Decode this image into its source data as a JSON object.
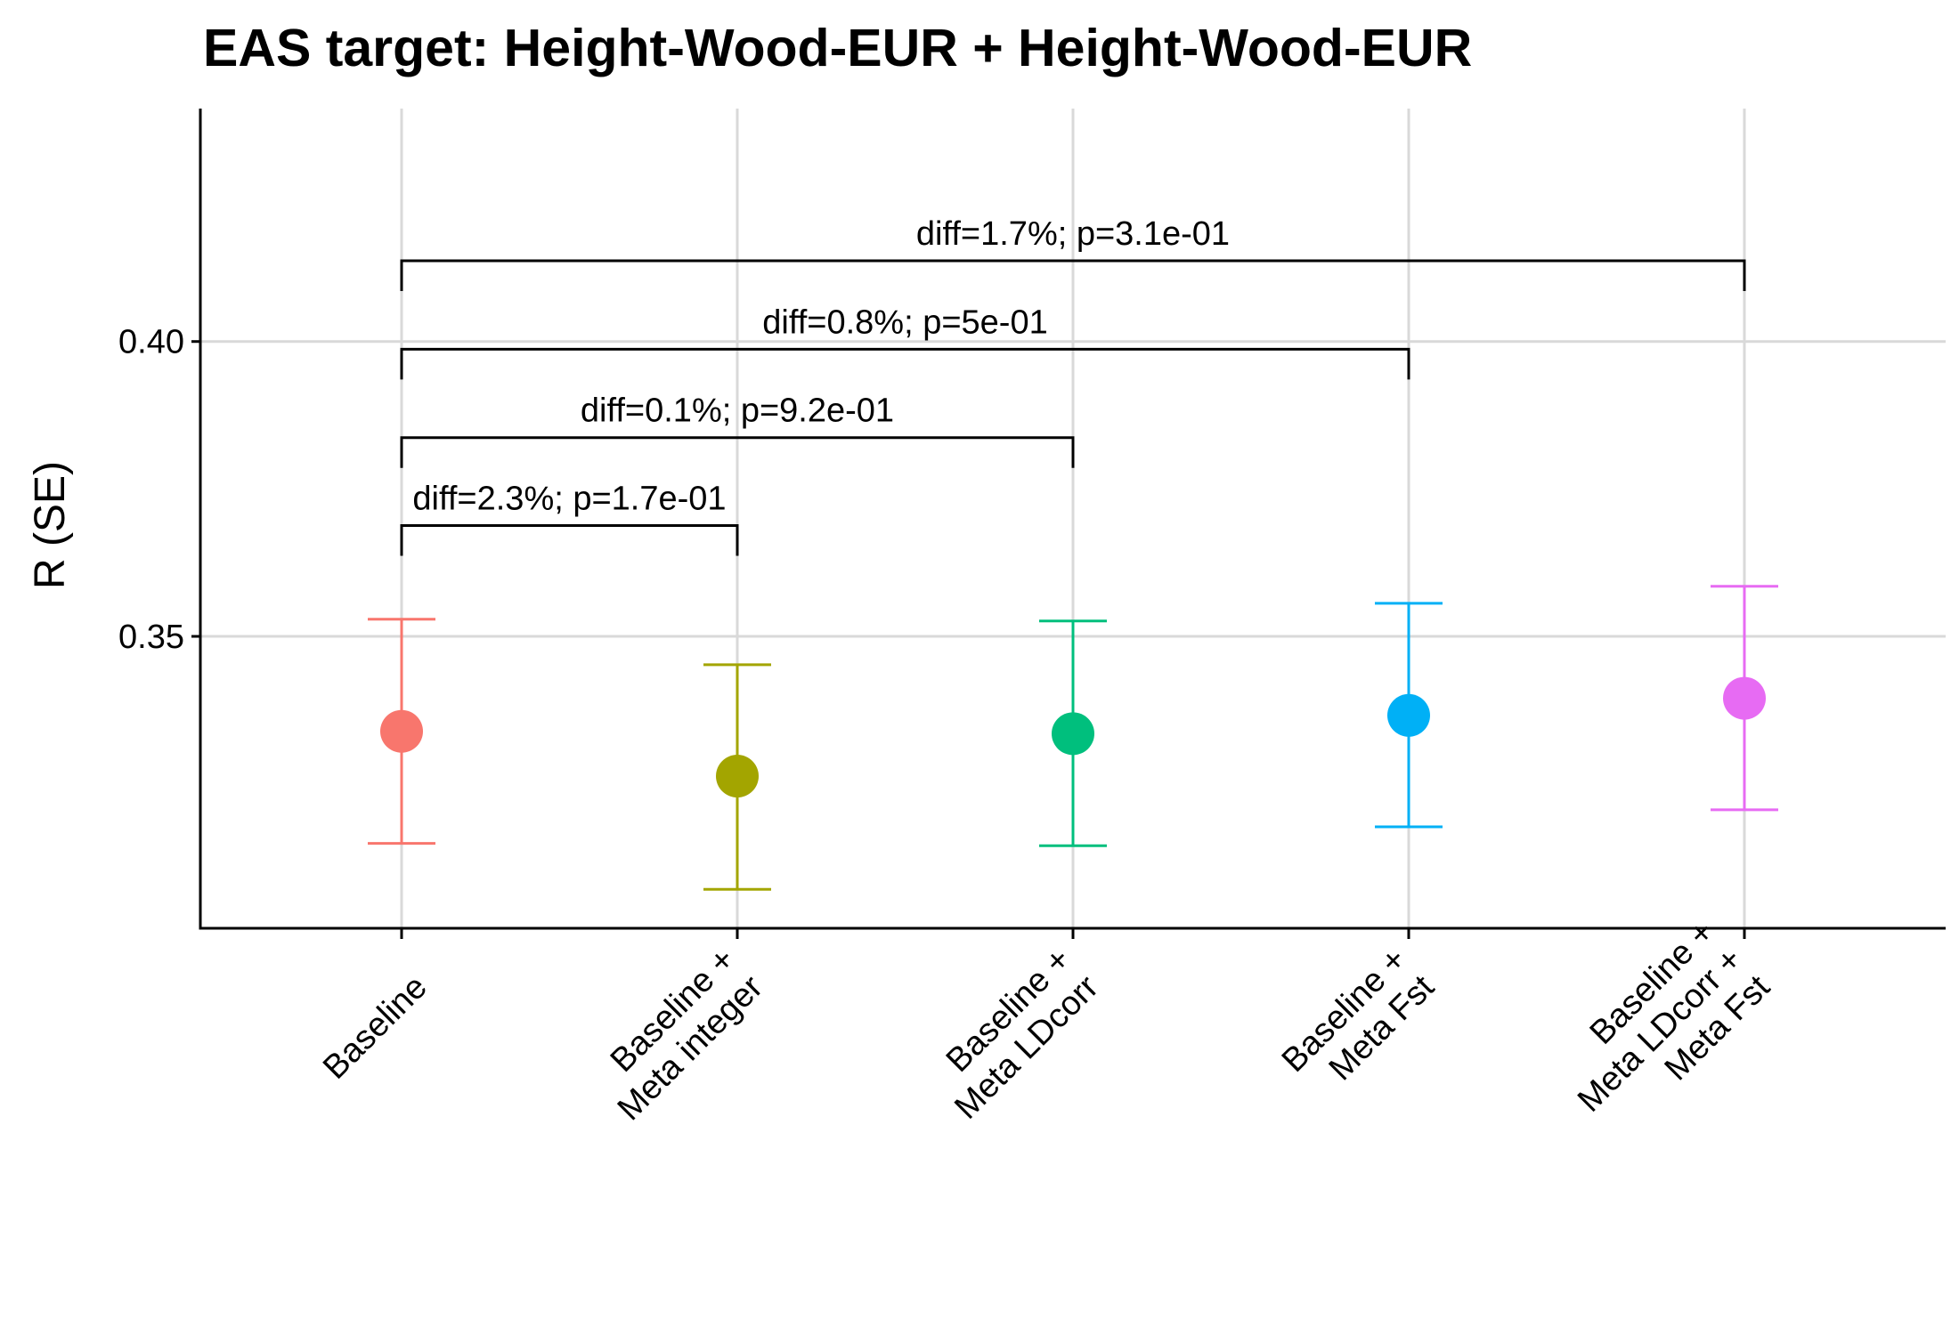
{
  "chart_data": {
    "type": "scatter",
    "title": "EAS target: Height-Wood-EUR + Height-Wood-EUR",
    "xlabel": "",
    "ylabel": "R (SE)",
    "ylim": [
      0.3005,
      0.4395
    ],
    "yticks": [
      0.35,
      0.4
    ],
    "ytick_labels": [
      "0.35",
      "0.40"
    ],
    "grid": true,
    "legend": "none",
    "categories": [
      [
        "Baseline"
      ],
      [
        "Baseline +",
        "Meta integer"
      ],
      [
        "Baseline +",
        "Meta LDcorr"
      ],
      [
        "Baseline +",
        "Meta Fst"
      ],
      [
        "Baseline +",
        "Meta LDcorr +",
        "Meta Fst"
      ]
    ],
    "points": [
      {
        "value": 0.3339,
        "lower": 0.3149,
        "upper": 0.3529,
        "color": "#F8766D"
      },
      {
        "value": 0.3263,
        "lower": 0.3071,
        "upper": 0.3452,
        "color": "#A3A500"
      },
      {
        "value": 0.3335,
        "lower": 0.3145,
        "upper": 0.3526,
        "color": "#00BF7D"
      },
      {
        "value": 0.3366,
        "lower": 0.3177,
        "upper": 0.3556,
        "color": "#00B0F6"
      },
      {
        "value": 0.3395,
        "lower": 0.3206,
        "upper": 0.3585,
        "color": "#E76BF3"
      }
    ],
    "comparisons": [
      {
        "from": 0,
        "to": 1,
        "label": "diff=2.3%; p=1.7e-01",
        "y": 0.3688
      },
      {
        "from": 0,
        "to": 2,
        "label": "diff=0.1%; p=9.2e-01",
        "y": 0.3837
      },
      {
        "from": 0,
        "to": 3,
        "label": "diff=0.8%; p=5e-01",
        "y": 0.3987
      },
      {
        "from": 0,
        "to": 4,
        "label": "diff=1.7%; p=3.1e-01",
        "y": 0.4137
      }
    ]
  }
}
